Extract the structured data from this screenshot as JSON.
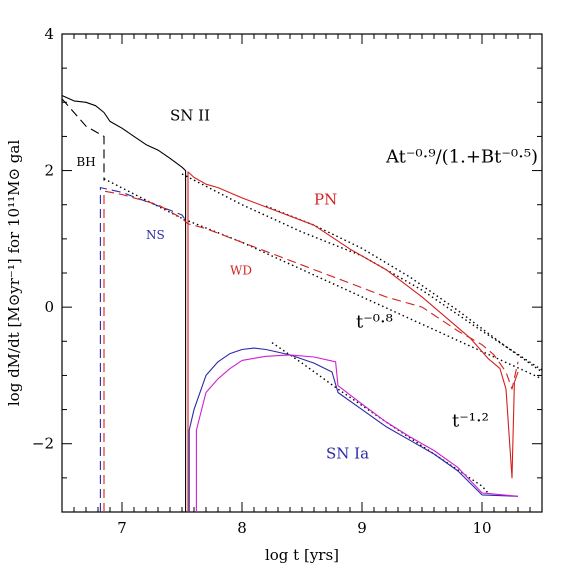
{
  "chart_data": {
    "type": "line",
    "xlabel": "log t [yrs]",
    "ylabel": "log dM/dt [M⊙yr⁻¹] for 10¹¹M⊙ gal",
    "xlim": [
      6.5,
      10.5
    ],
    "ylim": [
      -3,
      4
    ],
    "x_ticks": [
      7,
      8,
      9,
      10
    ],
    "y_ticks": [
      -2,
      0,
      2,
      4
    ],
    "tick_labels": {
      "x": [
        "7",
        "8",
        "9",
        "10"
      ],
      "y": [
        "−2",
        "0",
        "2",
        "4"
      ]
    },
    "colors": {
      "black": "#000000",
      "red": "#d42020",
      "blue": "#2a2aa8",
      "magenta": "#d020d0"
    },
    "series": [
      {
        "name": "SN II",
        "color": "#000000",
        "dash": "solid",
        "points": [
          [
            6.5,
            3.1
          ],
          [
            6.6,
            3.02
          ],
          [
            6.7,
            3.0
          ],
          [
            6.78,
            2.95
          ],
          [
            6.85,
            2.85
          ],
          [
            6.9,
            2.72
          ],
          [
            7.0,
            2.62
          ],
          [
            7.1,
            2.5
          ],
          [
            7.2,
            2.38
          ],
          [
            7.3,
            2.3
          ],
          [
            7.4,
            2.18
          ],
          [
            7.5,
            2.05
          ],
          [
            7.53,
            2.0
          ],
          [
            7.53,
            -3.0
          ]
        ]
      },
      {
        "name": "BH",
        "color": "#000000",
        "dash": "dashed",
        "points": [
          [
            6.5,
            3.05
          ],
          [
            6.6,
            2.85
          ],
          [
            6.7,
            2.65
          ],
          [
            6.8,
            2.55
          ],
          [
            6.85,
            2.5
          ],
          [
            6.85,
            1.85
          ]
        ]
      },
      {
        "name": "NS",
        "color": "#2a2aa8",
        "dash": "dashed",
        "points": [
          [
            6.82,
            -3.0
          ],
          [
            6.82,
            1.75
          ],
          [
            6.9,
            1.72
          ],
          [
            7.0,
            1.68
          ],
          [
            7.2,
            1.55
          ],
          [
            7.4,
            1.42
          ],
          [
            7.5,
            1.35
          ],
          [
            7.52,
            1.3
          ]
        ]
      },
      {
        "name": "WD",
        "color": "#d42020",
        "dash": "dashed",
        "points": [
          [
            6.85,
            -3.0
          ],
          [
            6.85,
            1.7
          ],
          [
            7.0,
            1.65
          ],
          [
            7.3,
            1.5
          ],
          [
            7.5,
            1.3
          ],
          [
            7.55,
            1.22
          ],
          [
            7.7,
            1.15
          ],
          [
            8.0,
            0.95
          ],
          [
            8.3,
            0.75
          ],
          [
            8.6,
            0.55
          ],
          [
            8.9,
            0.35
          ],
          [
            9.2,
            0.15
          ],
          [
            9.5,
            0.0
          ],
          [
            9.8,
            -0.35
          ],
          [
            10.0,
            -0.55
          ],
          [
            10.1,
            -0.7
          ],
          [
            10.2,
            -0.95
          ],
          [
            10.25,
            -1.2
          ],
          [
            10.3,
            -0.8
          ]
        ]
      },
      {
        "name": "PN",
        "color": "#d42020",
        "dash": "solid",
        "points": [
          [
            7.55,
            -3.0
          ],
          [
            7.55,
            1.98
          ],
          [
            7.6,
            1.9
          ],
          [
            7.7,
            1.8
          ],
          [
            7.8,
            1.75
          ],
          [
            8.0,
            1.6
          ],
          [
            8.3,
            1.4
          ],
          [
            8.6,
            1.2
          ],
          [
            8.9,
            0.85
          ],
          [
            9.2,
            0.55
          ],
          [
            9.5,
            0.15
          ],
          [
            9.7,
            -0.15
          ],
          [
            9.9,
            -0.45
          ],
          [
            10.05,
            -0.75
          ],
          [
            10.15,
            -0.9
          ],
          [
            10.2,
            -1.2
          ],
          [
            10.25,
            -2.5
          ],
          [
            10.27,
            -1.1
          ],
          [
            10.3,
            -0.95
          ]
        ]
      },
      {
        "name": "SN Ia",
        "color": "#2a2aa8",
        "dash": "solid",
        "points": [
          [
            7.56,
            -3.0
          ],
          [
            7.56,
            -1.8
          ],
          [
            7.6,
            -1.5
          ],
          [
            7.7,
            -1.0
          ],
          [
            7.8,
            -0.8
          ],
          [
            7.9,
            -0.68
          ],
          [
            8.0,
            -0.62
          ],
          [
            8.1,
            -0.6
          ],
          [
            8.2,
            -0.62
          ],
          [
            8.4,
            -0.7
          ],
          [
            8.6,
            -0.82
          ],
          [
            8.75,
            -0.95
          ],
          [
            8.8,
            -1.25
          ],
          [
            9.0,
            -1.5
          ],
          [
            9.2,
            -1.75
          ],
          [
            9.4,
            -1.95
          ],
          [
            9.6,
            -2.15
          ],
          [
            9.8,
            -2.4
          ],
          [
            10.0,
            -2.75
          ],
          [
            10.3,
            -2.77
          ]
        ]
      },
      {
        "name": "SN Ia (magenta)",
        "color": "#d020d0",
        "dash": "solid",
        "points": [
          [
            7.62,
            -3.0
          ],
          [
            7.62,
            -1.8
          ],
          [
            7.7,
            -1.25
          ],
          [
            7.8,
            -1.05
          ],
          [
            7.9,
            -0.9
          ],
          [
            8.0,
            -0.78
          ],
          [
            8.2,
            -0.72
          ],
          [
            8.4,
            -0.7
          ],
          [
            8.6,
            -0.73
          ],
          [
            8.78,
            -0.8
          ],
          [
            8.8,
            -1.15
          ],
          [
            9.0,
            -1.42
          ],
          [
            9.2,
            -1.68
          ],
          [
            9.4,
            -1.9
          ],
          [
            9.6,
            -2.1
          ],
          [
            9.8,
            -2.35
          ],
          [
            10.0,
            -2.72
          ],
          [
            10.3,
            -2.77
          ]
        ]
      }
    ],
    "fits": [
      {
        "label": "At⁻⁰·⁹/(1.+Bt⁻⁰·⁵)",
        "points": [
          [
            8.2,
            1.48
          ],
          [
            8.6,
            1.2
          ],
          [
            9.0,
            0.86
          ],
          [
            9.4,
            0.44
          ],
          [
            9.8,
            -0.05
          ],
          [
            10.2,
            -0.58
          ],
          [
            10.5,
            -0.95
          ]
        ]
      },
      {
        "label": "t⁻⁰·⁸ (upper)",
        "points": [
          [
            7.5,
            1.95
          ],
          [
            8.0,
            1.5
          ],
          [
            8.5,
            1.1
          ],
          [
            9.0,
            0.75
          ],
          [
            9.5,
            0.25
          ],
          [
            10.0,
            -0.35
          ],
          [
            10.5,
            -0.92
          ]
        ]
      },
      {
        "label": "t⁻⁰·⁸",
        "points": [
          [
            6.85,
            1.88
          ],
          [
            7.5,
            1.3
          ],
          [
            8.0,
            0.95
          ],
          [
            8.5,
            0.55
          ],
          [
            9.0,
            0.15
          ],
          [
            9.5,
            -0.25
          ],
          [
            10.0,
            -0.65
          ],
          [
            10.5,
            -1.05
          ]
        ]
      },
      {
        "label": "t⁻¹·²",
        "points": [
          [
            8.25,
            -0.52
          ],
          [
            8.5,
            -0.82
          ],
          [
            8.8,
            -1.2
          ],
          [
            9.2,
            -1.68
          ],
          [
            9.6,
            -2.15
          ],
          [
            10.0,
            -2.62
          ],
          [
            10.05,
            -2.72
          ]
        ]
      }
    ],
    "annotations": [
      {
        "text": "SN II",
        "x": 7.4,
        "y": 2.73,
        "color": "#000000"
      },
      {
        "text": "BH",
        "x": 6.62,
        "y": 2.07,
        "color": "#000000"
      },
      {
        "text": "NS",
        "x": 7.2,
        "y": 1.0,
        "color": "#2a2aa8"
      },
      {
        "text": "WD",
        "x": 7.9,
        "y": 0.48,
        "color": "#d42020"
      },
      {
        "text": "PN",
        "x": 8.6,
        "y": 1.5,
        "color": "#d42020"
      },
      {
        "text": "SN Ia",
        "x": 8.7,
        "y": -2.22,
        "color": "#2a2aa8"
      },
      {
        "text": "At⁻⁰·⁹/(1.+Bt⁻⁰·⁵)",
        "x": 9.2,
        "y": 2.12,
        "color": "#000000"
      },
      {
        "text": "t⁻⁰·⁸",
        "x": 8.95,
        "y": -0.3,
        "color": "#000000"
      },
      {
        "text": "t⁻¹·²",
        "x": 9.75,
        "y": -1.75,
        "color": "#000000"
      }
    ]
  }
}
